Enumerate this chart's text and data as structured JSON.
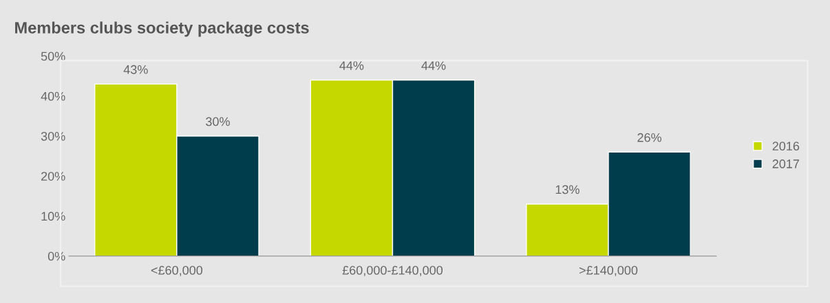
{
  "chart_data": {
    "type": "bar",
    "title": "Members clubs society package costs",
    "categories": [
      "<£60,000",
      "£60,000-£140,000",
      ">£140,000"
    ],
    "series": [
      {
        "name": "2016",
        "color": "#c5d800",
        "values": [
          43,
          44,
          13
        ],
        "value_labels": [
          "43%",
          "44%",
          "13%"
        ]
      },
      {
        "name": "2017",
        "color": "#003d4c",
        "values": [
          30,
          44,
          26
        ],
        "value_labels": [
          "30%",
          "44%",
          "26%"
        ]
      }
    ],
    "ylim": [
      0,
      50
    ],
    "yticks": [
      {
        "value": 0,
        "label": "0%"
      },
      {
        "value": 10,
        "label": "10%"
      },
      {
        "value": 20,
        "label": "20%"
      },
      {
        "value": 30,
        "label": "30%"
      },
      {
        "value": 40,
        "label": "40%"
      },
      {
        "value": 50,
        "label": "50%"
      }
    ],
    "grid": false,
    "legend": "right"
  }
}
